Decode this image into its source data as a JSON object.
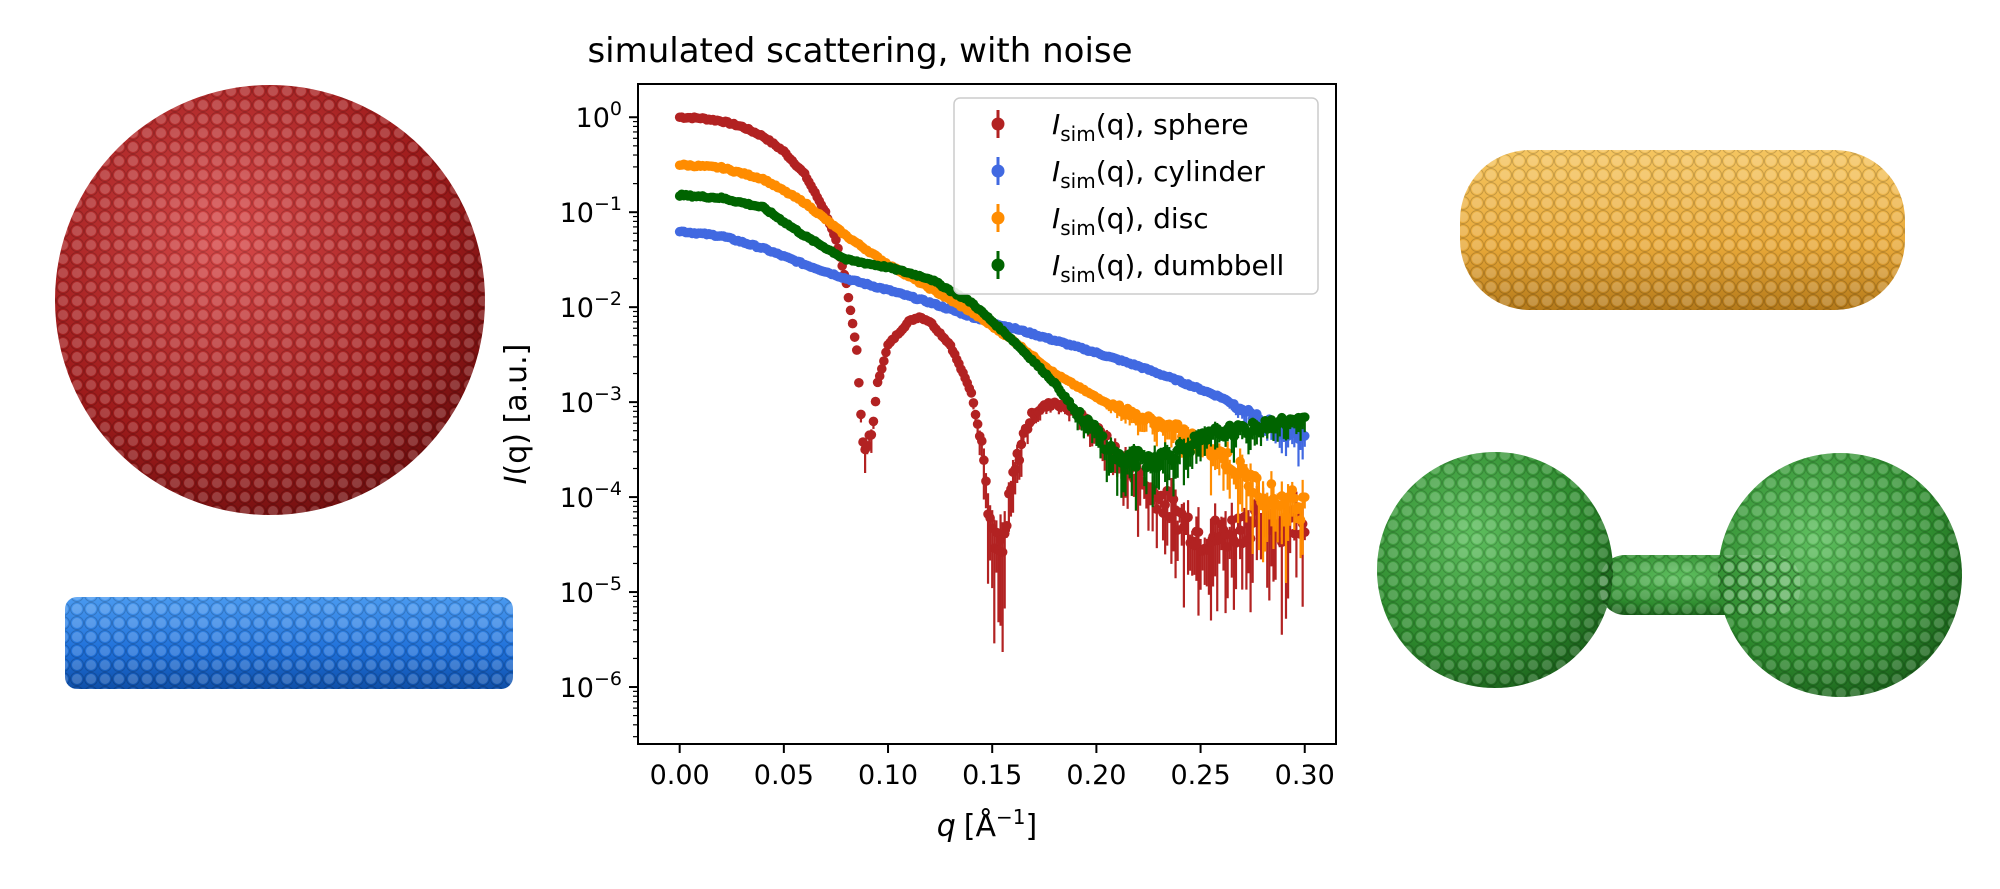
{
  "chart_data": {
    "type": "scatter",
    "title": "simulated scattering, with noise",
    "xlabel_var": "q",
    "xlabel_unit": "[Å",
    "xlabel_exp": "−1",
    "xlabel_close": "]",
    "ylabel_var": "I",
    "ylabel_rest": "(q) [a.u.]",
    "x_range": [
      0.0,
      0.3
    ],
    "xlim": [
      -0.02,
      0.315
    ],
    "ylim_log10": [
      -6.6,
      0.35
    ],
    "yscale": "log",
    "x_ticks": [
      0.0,
      0.05,
      0.1,
      0.15,
      0.2,
      0.25,
      0.3
    ],
    "x_tick_labels": [
      "0.00",
      "0.05",
      "0.10",
      "0.15",
      "0.20",
      "0.25",
      "0.30"
    ],
    "y_tick_exponents": [
      "0",
      "−1",
      "−2",
      "−3",
      "−4",
      "−5",
      "−6"
    ],
    "y_tick_base": "10",
    "grid": false,
    "legend_position": "top-right",
    "series": [
      {
        "name": "sphere",
        "legend_prefix": "I",
        "legend_sub": "sim",
        "legend_suffix": "(q), sphere",
        "color": "#b22222",
        "points": [
          [
            0.0,
            0.0
          ],
          [
            0.01,
            -0.01
          ],
          [
            0.02,
            -0.04
          ],
          [
            0.03,
            -0.1
          ],
          [
            0.04,
            -0.2
          ],
          [
            0.05,
            -0.36
          ],
          [
            0.06,
            -0.6
          ],
          [
            0.07,
            -1.0
          ],
          [
            0.075,
            -1.3
          ],
          [
            0.08,
            -1.75
          ],
          [
            0.085,
            -2.45
          ],
          [
            0.088,
            -3.5
          ],
          [
            0.092,
            -3.4
          ],
          [
            0.095,
            -2.8
          ],
          [
            0.1,
            -2.4
          ],
          [
            0.11,
            -2.15
          ],
          [
            0.115,
            -2.1
          ],
          [
            0.12,
            -2.15
          ],
          [
            0.13,
            -2.4
          ],
          [
            0.14,
            -2.9
          ],
          [
            0.145,
            -3.4
          ],
          [
            0.15,
            -4.5
          ],
          [
            0.155,
            -4.6
          ],
          [
            0.16,
            -3.8
          ],
          [
            0.165,
            -3.35
          ],
          [
            0.17,
            -3.1
          ],
          [
            0.18,
            -3.0
          ],
          [
            0.19,
            -3.1
          ],
          [
            0.2,
            -3.3
          ],
          [
            0.21,
            -3.55
          ],
          [
            0.22,
            -3.8
          ],
          [
            0.23,
            -4.0
          ],
          [
            0.24,
            -4.2
          ],
          [
            0.25,
            -4.4
          ],
          [
            0.26,
            -4.4
          ],
          [
            0.27,
            -4.3
          ],
          [
            0.28,
            -4.2
          ],
          [
            0.29,
            -4.3
          ],
          [
            0.3,
            -4.2
          ]
        ]
      },
      {
        "name": "cylinder",
        "legend_prefix": "I",
        "legend_sub": "sim",
        "legend_suffix": "(q), cylinder",
        "color": "#4169e1",
        "points": [
          [
            0.0,
            -1.2
          ],
          [
            0.02,
            -1.25
          ],
          [
            0.04,
            -1.38
          ],
          [
            0.06,
            -1.55
          ],
          [
            0.08,
            -1.7
          ],
          [
            0.1,
            -1.82
          ],
          [
            0.12,
            -1.95
          ],
          [
            0.14,
            -2.1
          ],
          [
            0.16,
            -2.22
          ],
          [
            0.18,
            -2.35
          ],
          [
            0.2,
            -2.48
          ],
          [
            0.22,
            -2.62
          ],
          [
            0.24,
            -2.78
          ],
          [
            0.26,
            -2.95
          ],
          [
            0.28,
            -3.2
          ],
          [
            0.29,
            -3.3
          ],
          [
            0.3,
            -3.35
          ]
        ]
      },
      {
        "name": "disc",
        "legend_prefix": "I",
        "legend_sub": "sim",
        "legend_suffix": "(q), disc",
        "color": "#ff8c00",
        "points": [
          [
            0.0,
            -0.5
          ],
          [
            0.02,
            -0.53
          ],
          [
            0.04,
            -0.65
          ],
          [
            0.06,
            -0.9
          ],
          [
            0.08,
            -1.25
          ],
          [
            0.1,
            -1.55
          ],
          [
            0.12,
            -1.8
          ],
          [
            0.14,
            -2.05
          ],
          [
            0.16,
            -2.35
          ],
          [
            0.18,
            -2.7
          ],
          [
            0.2,
            -2.95
          ],
          [
            0.22,
            -3.15
          ],
          [
            0.24,
            -3.3
          ],
          [
            0.26,
            -3.55
          ],
          [
            0.27,
            -3.75
          ],
          [
            0.28,
            -3.95
          ],
          [
            0.29,
            -4.05
          ],
          [
            0.3,
            -4.1
          ]
        ]
      },
      {
        "name": "dumbbell",
        "legend_prefix": "I",
        "legend_sub": "sim",
        "legend_suffix": "(q), dumbbell",
        "color": "#006400",
        "points": [
          [
            0.0,
            -0.82
          ],
          [
            0.02,
            -0.85
          ],
          [
            0.04,
            -0.95
          ],
          [
            0.06,
            -1.25
          ],
          [
            0.08,
            -1.5
          ],
          [
            0.1,
            -1.58
          ],
          [
            0.12,
            -1.7
          ],
          [
            0.14,
            -1.95
          ],
          [
            0.16,
            -2.35
          ],
          [
            0.18,
            -2.8
          ],
          [
            0.19,
            -3.1
          ],
          [
            0.2,
            -3.3
          ],
          [
            0.21,
            -3.6
          ],
          [
            0.22,
            -3.6
          ],
          [
            0.23,
            -3.6
          ],
          [
            0.24,
            -3.5
          ],
          [
            0.25,
            -3.4
          ],
          [
            0.26,
            -3.3
          ],
          [
            0.27,
            -3.3
          ],
          [
            0.28,
            -3.25
          ],
          [
            0.29,
            -3.2
          ],
          [
            0.3,
            -3.2
          ]
        ]
      }
    ]
  },
  "illustrations": {
    "sphere_color": "#b22222",
    "cylinder_color": "#1e6fd9",
    "disc_color": "#e8a838",
    "dumbbell_color": "#2e8b2e"
  }
}
